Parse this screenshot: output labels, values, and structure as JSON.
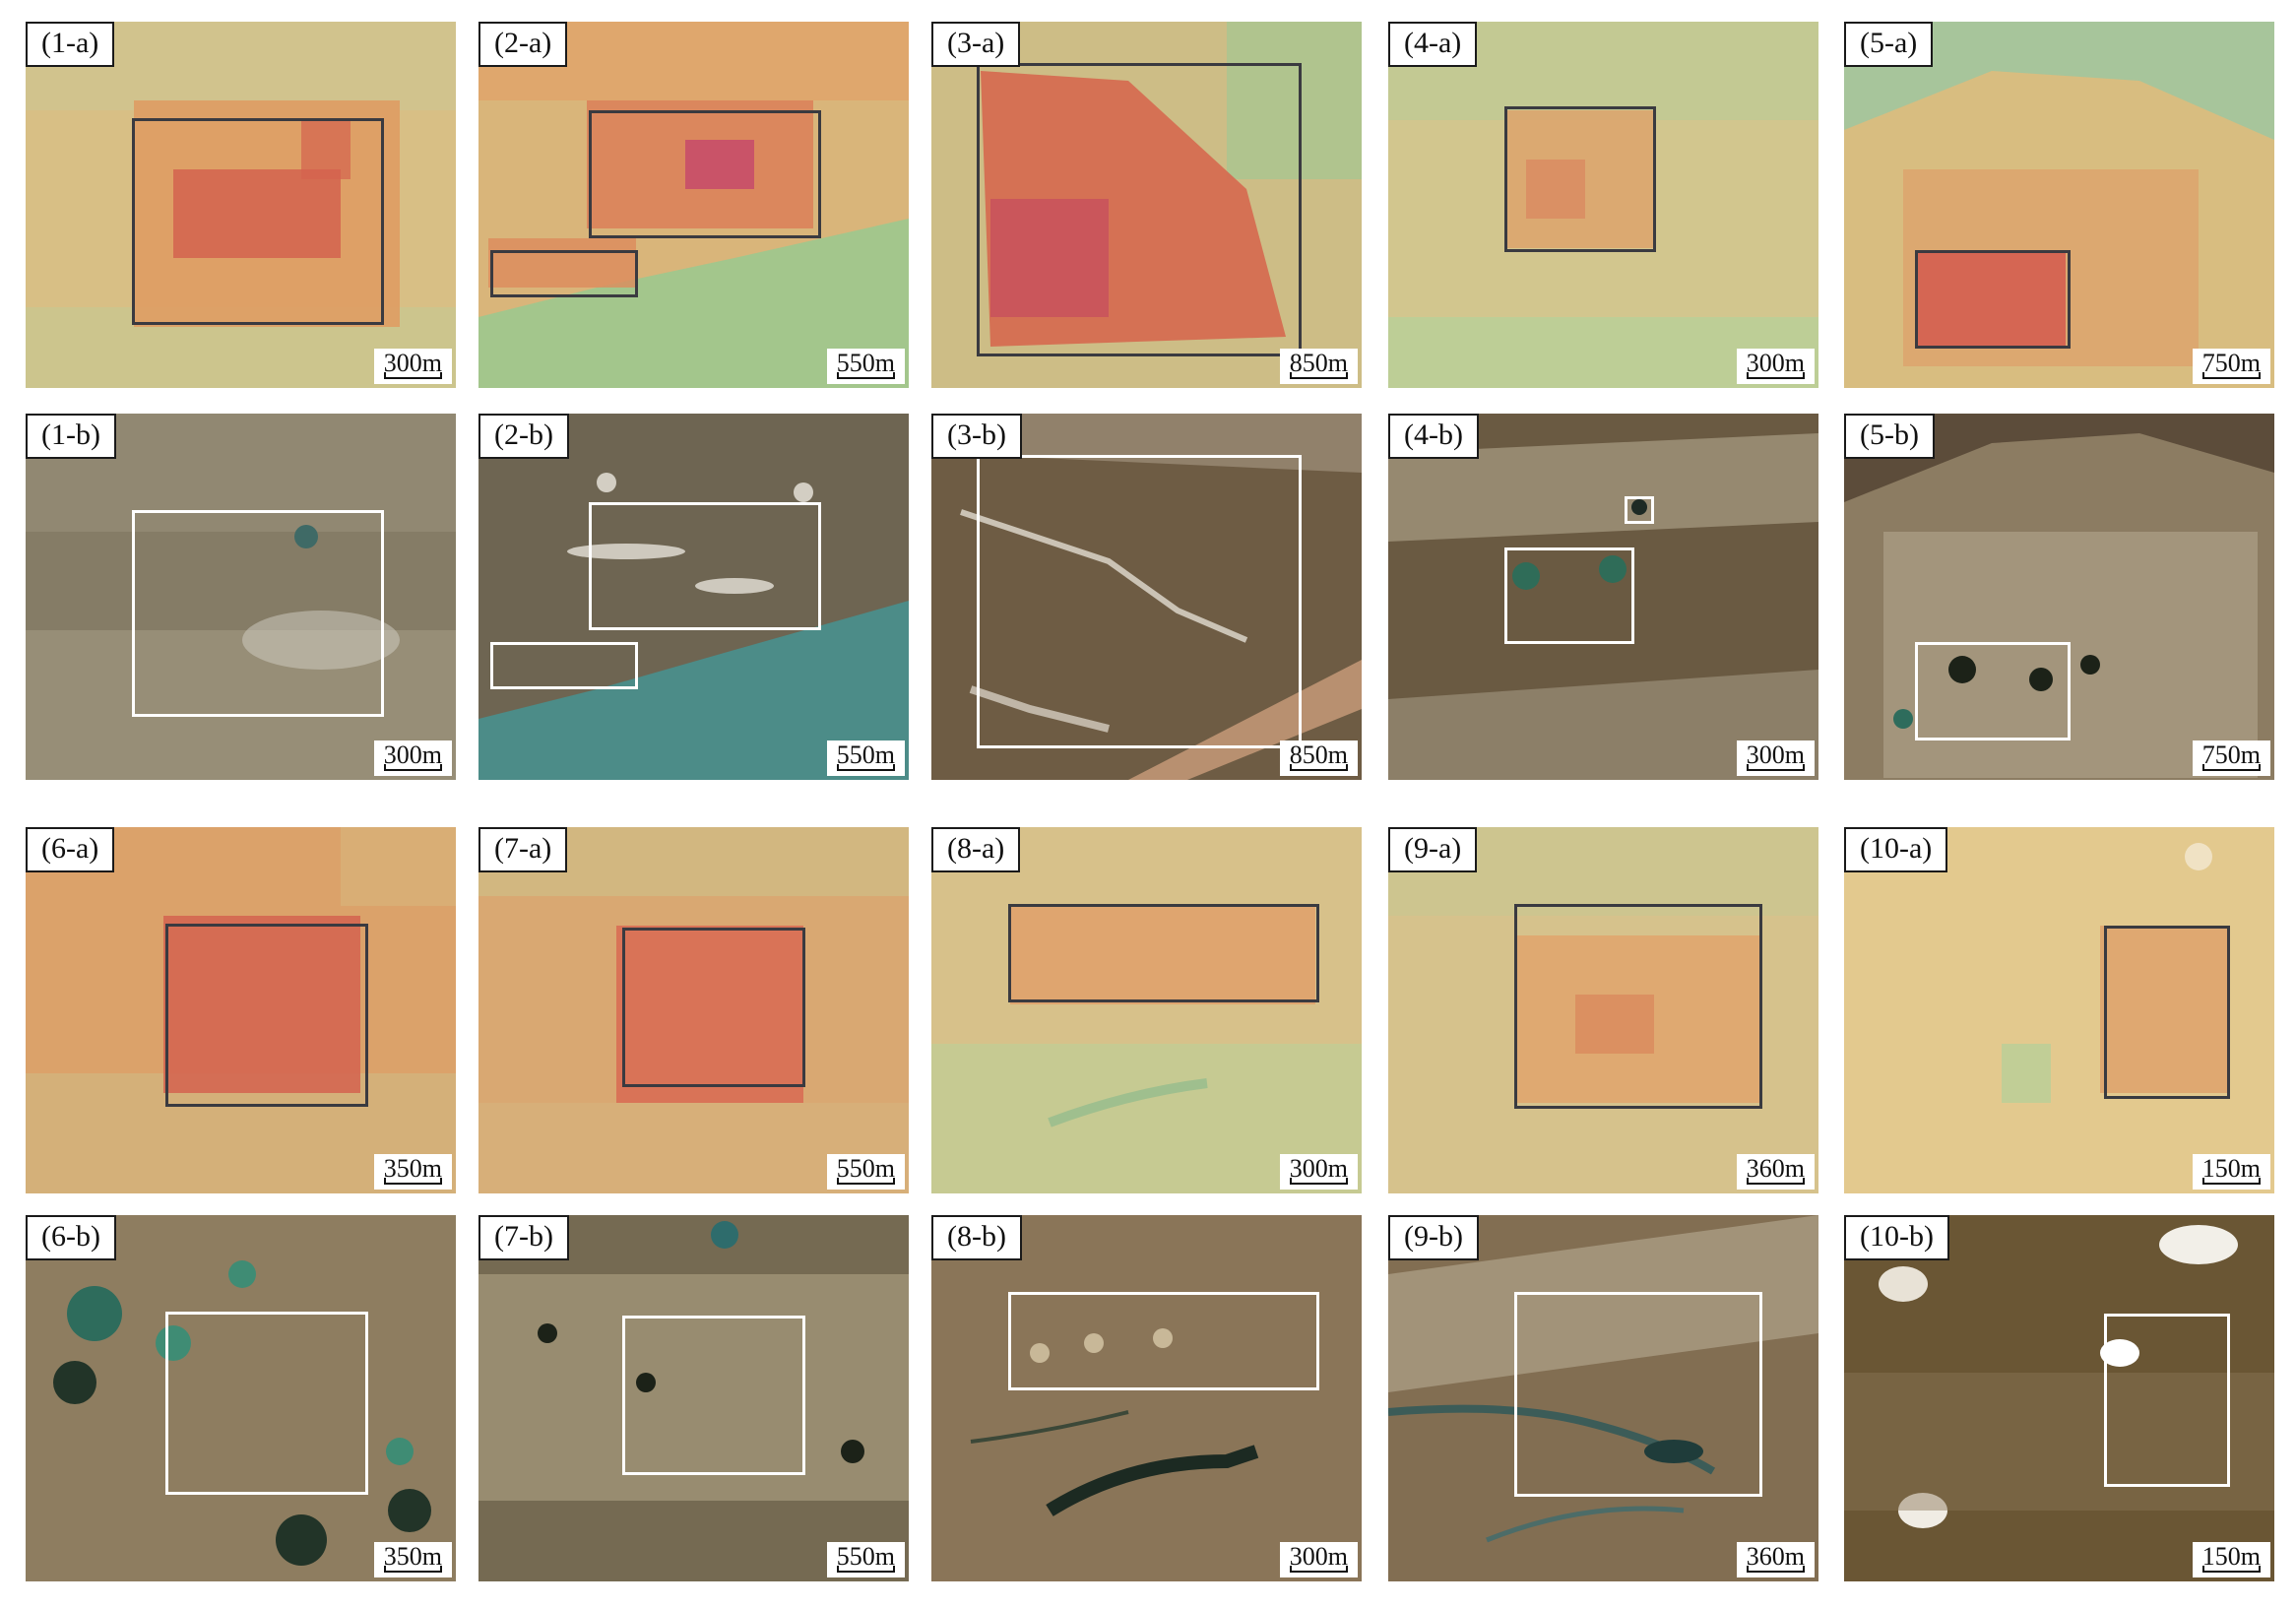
{
  "panels": [
    {
      "label": "(1-a)",
      "scale": "300m",
      "type": "a"
    },
    {
      "label": "(2-a)",
      "scale": "550m",
      "type": "a"
    },
    {
      "label": "(3-a)",
      "scale": "850m",
      "type": "a"
    },
    {
      "label": "(4-a)",
      "scale": "300m",
      "type": "a"
    },
    {
      "label": "(5-a)",
      "scale": "750m",
      "type": "a"
    },
    {
      "label": "(1-b)",
      "scale": "300m",
      "type": "b"
    },
    {
      "label": "(2-b)",
      "scale": "550m",
      "type": "b"
    },
    {
      "label": "(3-b)",
      "scale": "850m",
      "type": "b"
    },
    {
      "label": "(4-b)",
      "scale": "300m",
      "type": "b"
    },
    {
      "label": "(5-b)",
      "scale": "750m",
      "type": "b"
    },
    {
      "label": "(6-a)",
      "scale": "350m",
      "type": "a"
    },
    {
      "label": "(7-a)",
      "scale": "550m",
      "type": "a"
    },
    {
      "label": "(8-a)",
      "scale": "300m",
      "type": "a"
    },
    {
      "label": "(9-a)",
      "scale": "360m",
      "type": "a"
    },
    {
      "label": "(10-a)",
      "scale": "150m",
      "type": "a"
    },
    {
      "label": "(6-b)",
      "scale": "350m",
      "type": "b"
    },
    {
      "label": "(7-b)",
      "scale": "550m",
      "type": "b"
    },
    {
      "label": "(8-b)",
      "scale": "300m",
      "type": "b"
    },
    {
      "label": "(9-b)",
      "scale": "360m",
      "type": "b"
    },
    {
      "label": "(10-b)",
      "scale": "150m",
      "type": "b"
    }
  ],
  "colors": {
    "heat_high": "#d2504a",
    "heat_mid": "#e0965e",
    "heat_low": "#e6c88a",
    "heat_cool": "#a8cc8c",
    "sat_dark": "#6b5a40",
    "sat_light": "#c8bca0",
    "water": "#3f8c84",
    "box_dark": "#3a3a40",
    "box_light": "#ffffff"
  }
}
